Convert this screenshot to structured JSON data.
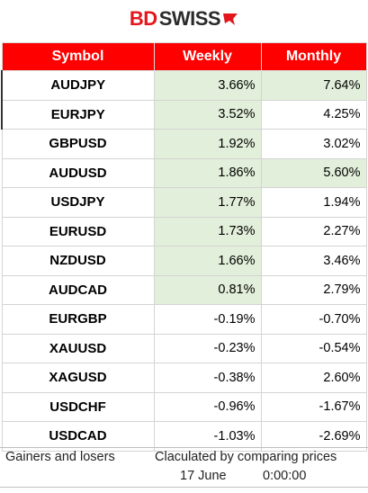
{
  "brand": {
    "part1": "BD",
    "part2": "SWISS",
    "mark_color": "#e3161d"
  },
  "table": {
    "headers": [
      "Symbol",
      "Weekly",
      "Monthly"
    ],
    "rows": [
      {
        "symbol": "AUDJPY",
        "weekly": "3.66%",
        "monthly": "7.64%",
        "weekly_hl": true,
        "monthly_hl": true
      },
      {
        "symbol": "EURJPY",
        "weekly": "3.52%",
        "monthly": "4.25%",
        "weekly_hl": true,
        "monthly_hl": false
      },
      {
        "symbol": "GBPUSD",
        "weekly": "1.92%",
        "monthly": "3.02%",
        "weekly_hl": true,
        "monthly_hl": false
      },
      {
        "symbol": "AUDUSD",
        "weekly": "1.86%",
        "monthly": "5.60%",
        "weekly_hl": true,
        "monthly_hl": true
      },
      {
        "symbol": "USDJPY",
        "weekly": "1.77%",
        "monthly": "1.94%",
        "weekly_hl": true,
        "monthly_hl": false
      },
      {
        "symbol": "EURUSD",
        "weekly": "1.73%",
        "monthly": "2.27%",
        "weekly_hl": true,
        "monthly_hl": false
      },
      {
        "symbol": "NZDUSD",
        "weekly": "1.66%",
        "monthly": "3.46%",
        "weekly_hl": true,
        "monthly_hl": false
      },
      {
        "symbol": "AUDCAD",
        "weekly": "0.81%",
        "monthly": "2.79%",
        "weekly_hl": true,
        "monthly_hl": false
      },
      {
        "symbol": "EURGBP",
        "weekly": "-0.19%",
        "monthly": "-0.70%",
        "weekly_hl": false,
        "monthly_hl": false
      },
      {
        "symbol": "XAUUSD",
        "weekly": "-0.23%",
        "monthly": "-0.54%",
        "weekly_hl": false,
        "monthly_hl": false
      },
      {
        "symbol": "XAGUSD",
        "weekly": "-0.38%",
        "monthly": "2.60%",
        "weekly_hl": false,
        "monthly_hl": false
      },
      {
        "symbol": "USDCHF",
        "weekly": "-0.96%",
        "monthly": "-1.67%",
        "weekly_hl": false,
        "monthly_hl": false
      },
      {
        "symbol": "USDCAD",
        "weekly": "-1.03%",
        "monthly": "-2.69%",
        "weekly_hl": false,
        "monthly_hl": false
      }
    ],
    "highlight_color": "#e2efda",
    "header_color": "#ff0000"
  },
  "footer": {
    "gainers_losers": "Gainers and losers",
    "calculated": "Claculated by comparing prices",
    "date": "17 June",
    "time": "0:00:00"
  }
}
